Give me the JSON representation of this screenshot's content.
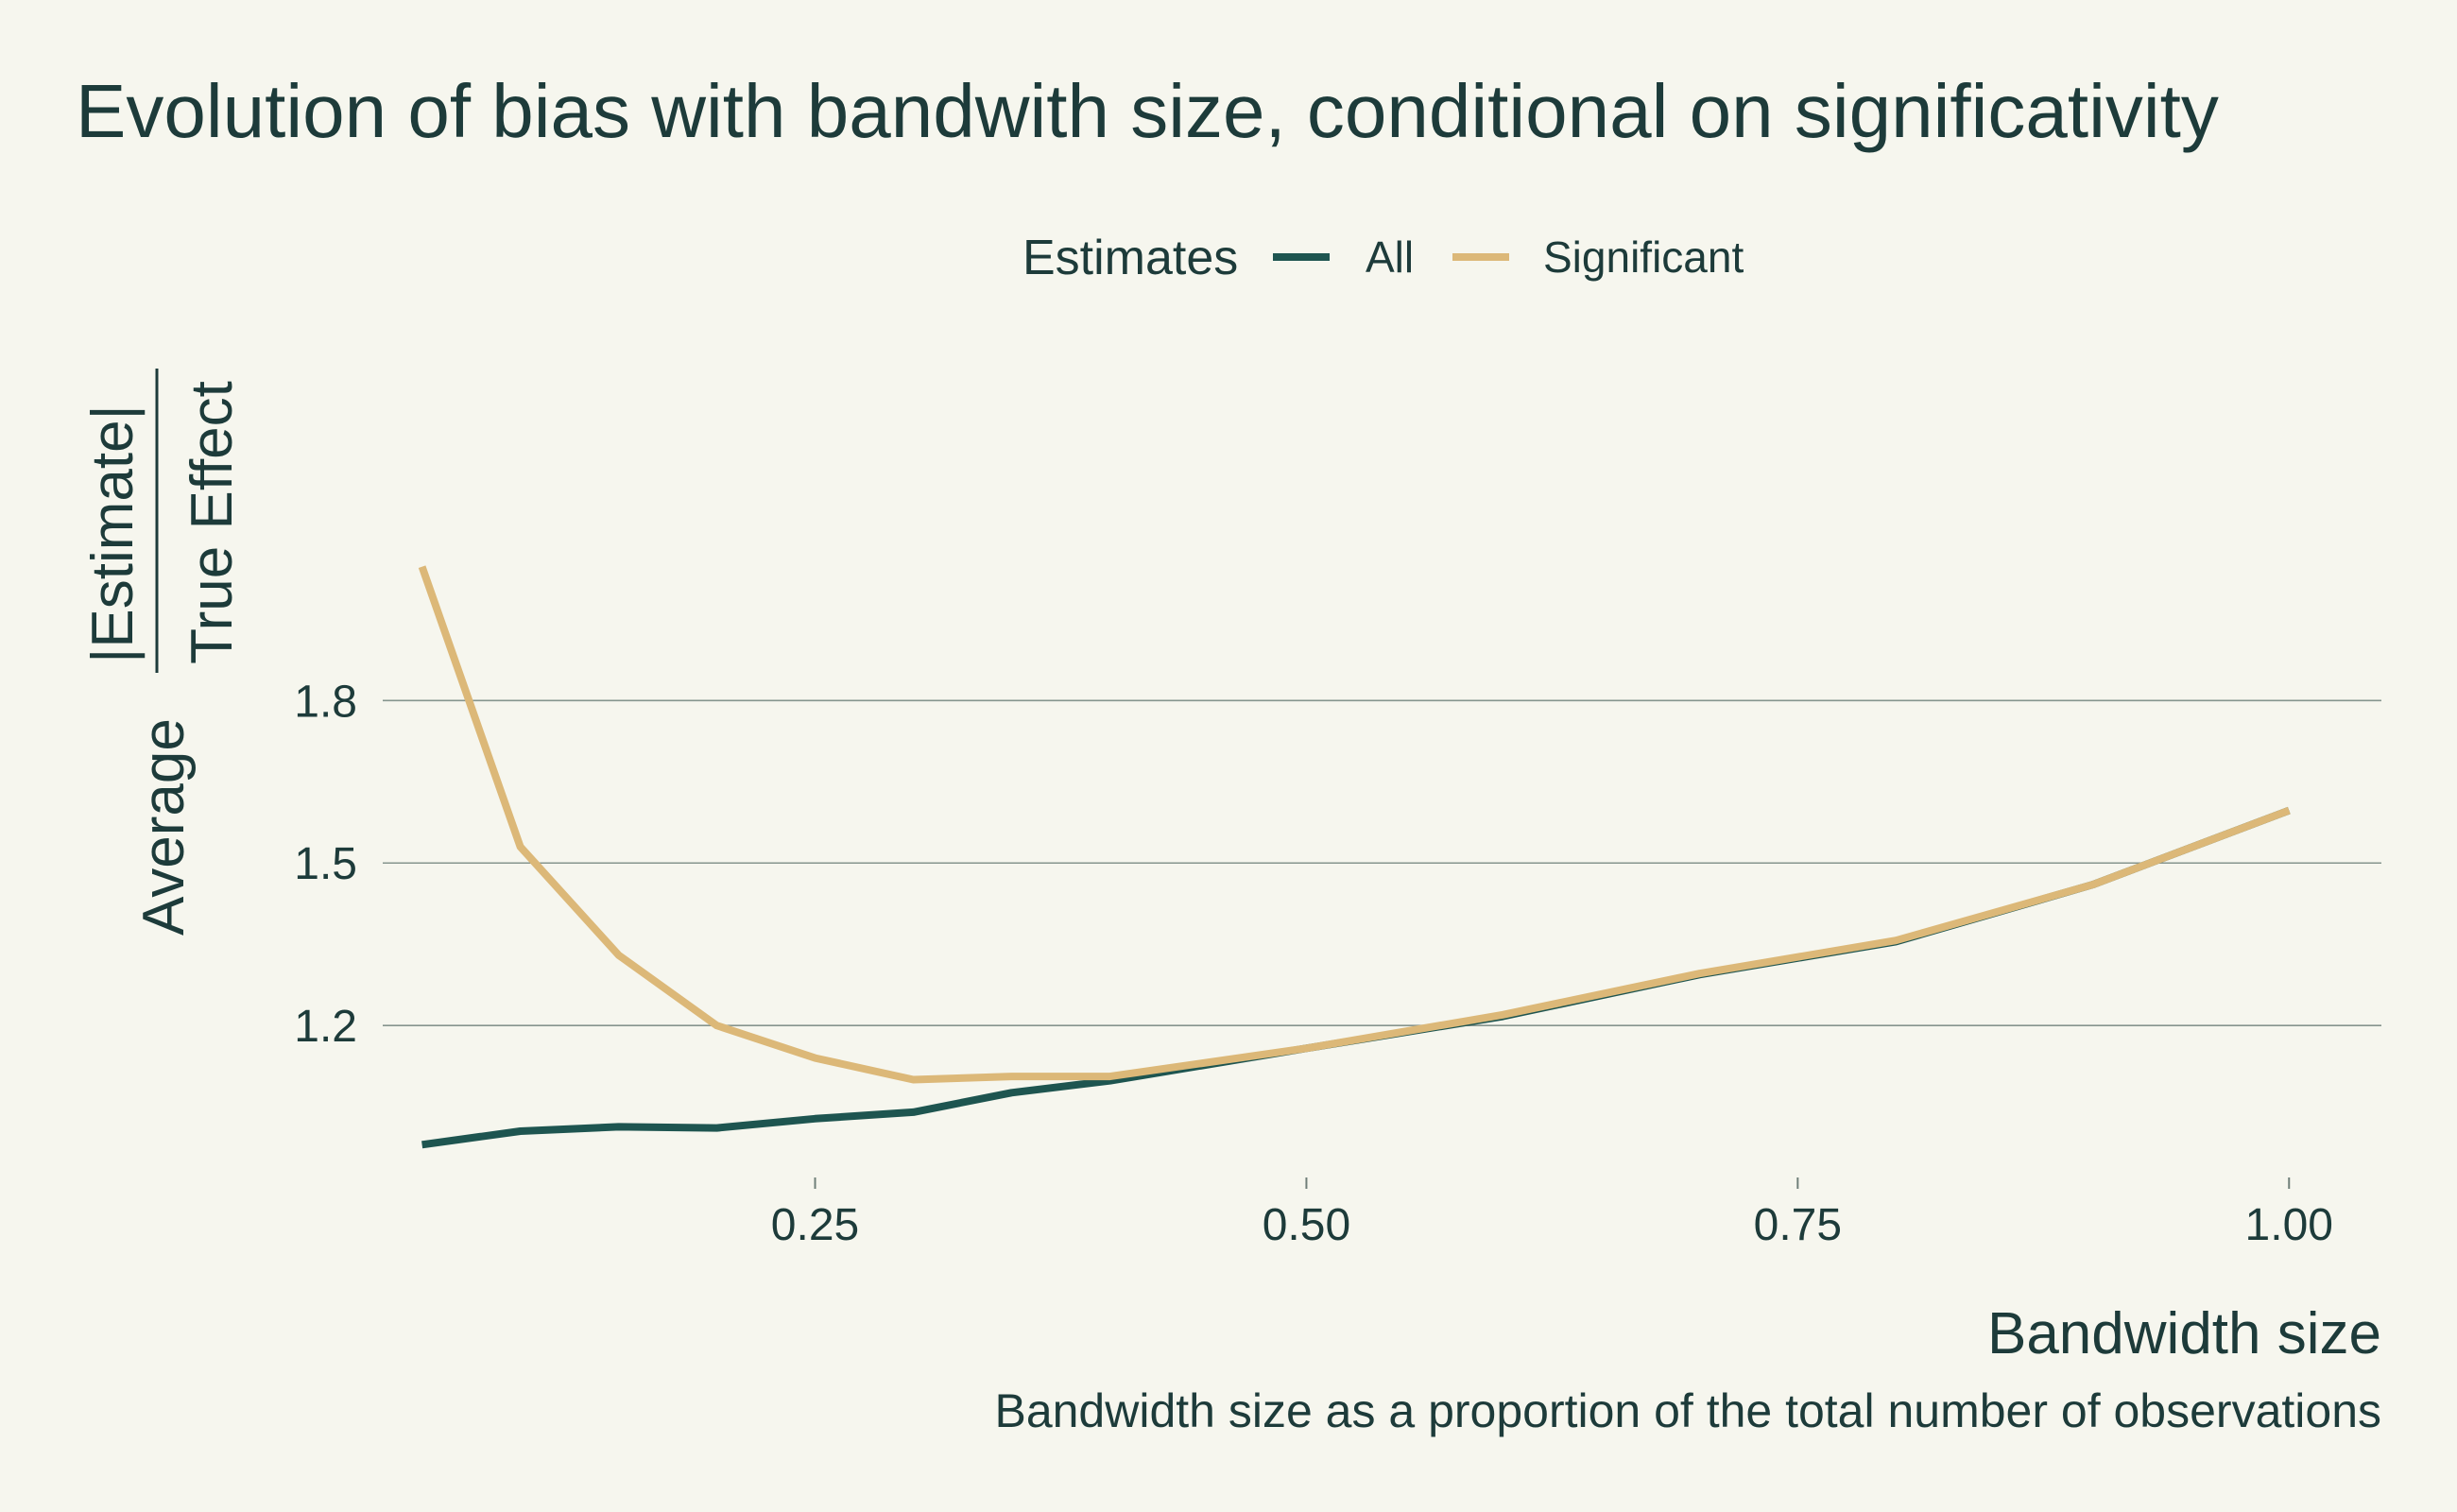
{
  "chart_data": {
    "type": "line",
    "title": "Evolution of bias with bandwith size, conditional on significativity",
    "xlabel": "Bandwidth size",
    "caption": "Bandwidth size as a proportion of the total number of observations",
    "ylabel": {
      "prefix": "Average",
      "numerator": "|Estimate|",
      "denominator": "True Effect"
    },
    "legend": {
      "title": "Estimates",
      "position": "top"
    },
    "xlim": [
      0.03,
      1.047
    ],
    "ylim": [
      0.93,
      2.5
    ],
    "x_ticks": [
      {
        "value": 0.25,
        "label": "0.25"
      },
      {
        "value": 0.5,
        "label": "0.50"
      },
      {
        "value": 0.75,
        "label": "0.75"
      },
      {
        "value": 1.0,
        "label": "1.00"
      }
    ],
    "y_ticks": [
      {
        "value": 1.2,
        "label": "1.2"
      },
      {
        "value": 1.5,
        "label": "1.5"
      },
      {
        "value": 1.8,
        "label": "1.8"
      }
    ],
    "grid": "horizontal",
    "x": [
      0.05,
      0.1,
      0.15,
      0.2,
      0.25,
      0.3,
      0.35,
      0.4,
      0.5,
      0.6,
      0.7,
      0.8,
      0.9,
      1.0
    ],
    "series": [
      {
        "name": "All",
        "color": "#1e5550",
        "values": [
          0.98,
          1.005,
          1.013,
          1.011,
          1.028,
          1.04,
          1.076,
          1.098,
          1.158,
          1.217,
          1.294,
          1.355,
          1.46,
          1.597
        ]
      },
      {
        "name": "Significant",
        "color": "#dcb878",
        "values": [
          2.047,
          1.53,
          1.33,
          1.2,
          1.14,
          1.1,
          1.106,
          1.106,
          1.158,
          1.22,
          1.296,
          1.357,
          1.46,
          1.597
        ]
      }
    ]
  }
}
